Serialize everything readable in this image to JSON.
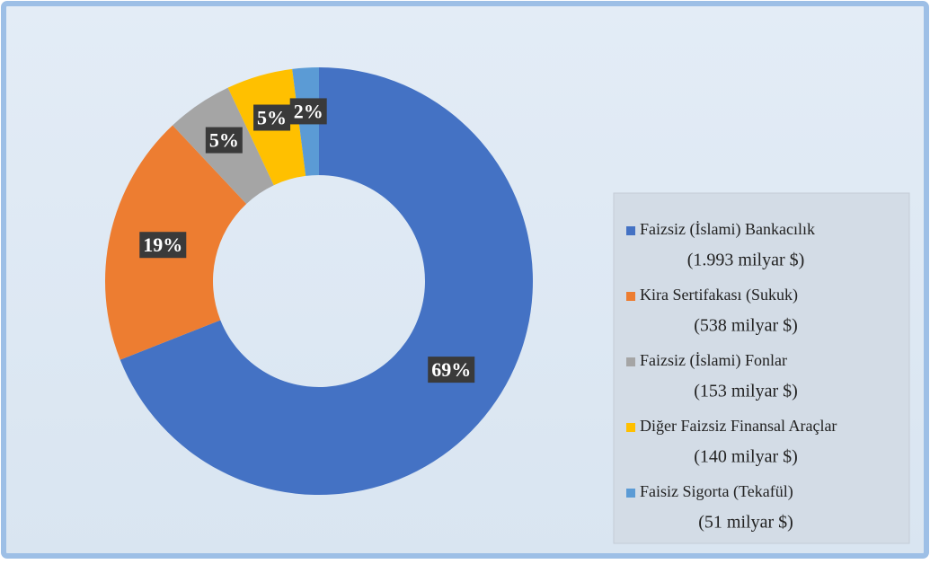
{
  "chart_data": {
    "type": "donut",
    "categories": [
      "Faizsiz (İslami) Bankacılık",
      "Kira Sertifakası (Sukuk)",
      "Faizsiz (İslami) Fonlar",
      "Diğer Faizsiz Finansal Araçlar",
      "Faisiz Sigorta (Tekafül)"
    ],
    "legend_notes": [
      "(1.993 milyar $)",
      "(538 milyar $)",
      "(153 milyar $)",
      "(140 milyar $)",
      "(51 milyar $)"
    ],
    "values": [
      69,
      19,
      5,
      5,
      2
    ],
    "value_labels": [
      "69%",
      "19%",
      "5%",
      "5%",
      "2%"
    ],
    "colors": [
      "#4472c4",
      "#ed7d31",
      "#a5a5a5",
      "#ffc000",
      "#5b9bd5"
    ],
    "legend": "right"
  }
}
